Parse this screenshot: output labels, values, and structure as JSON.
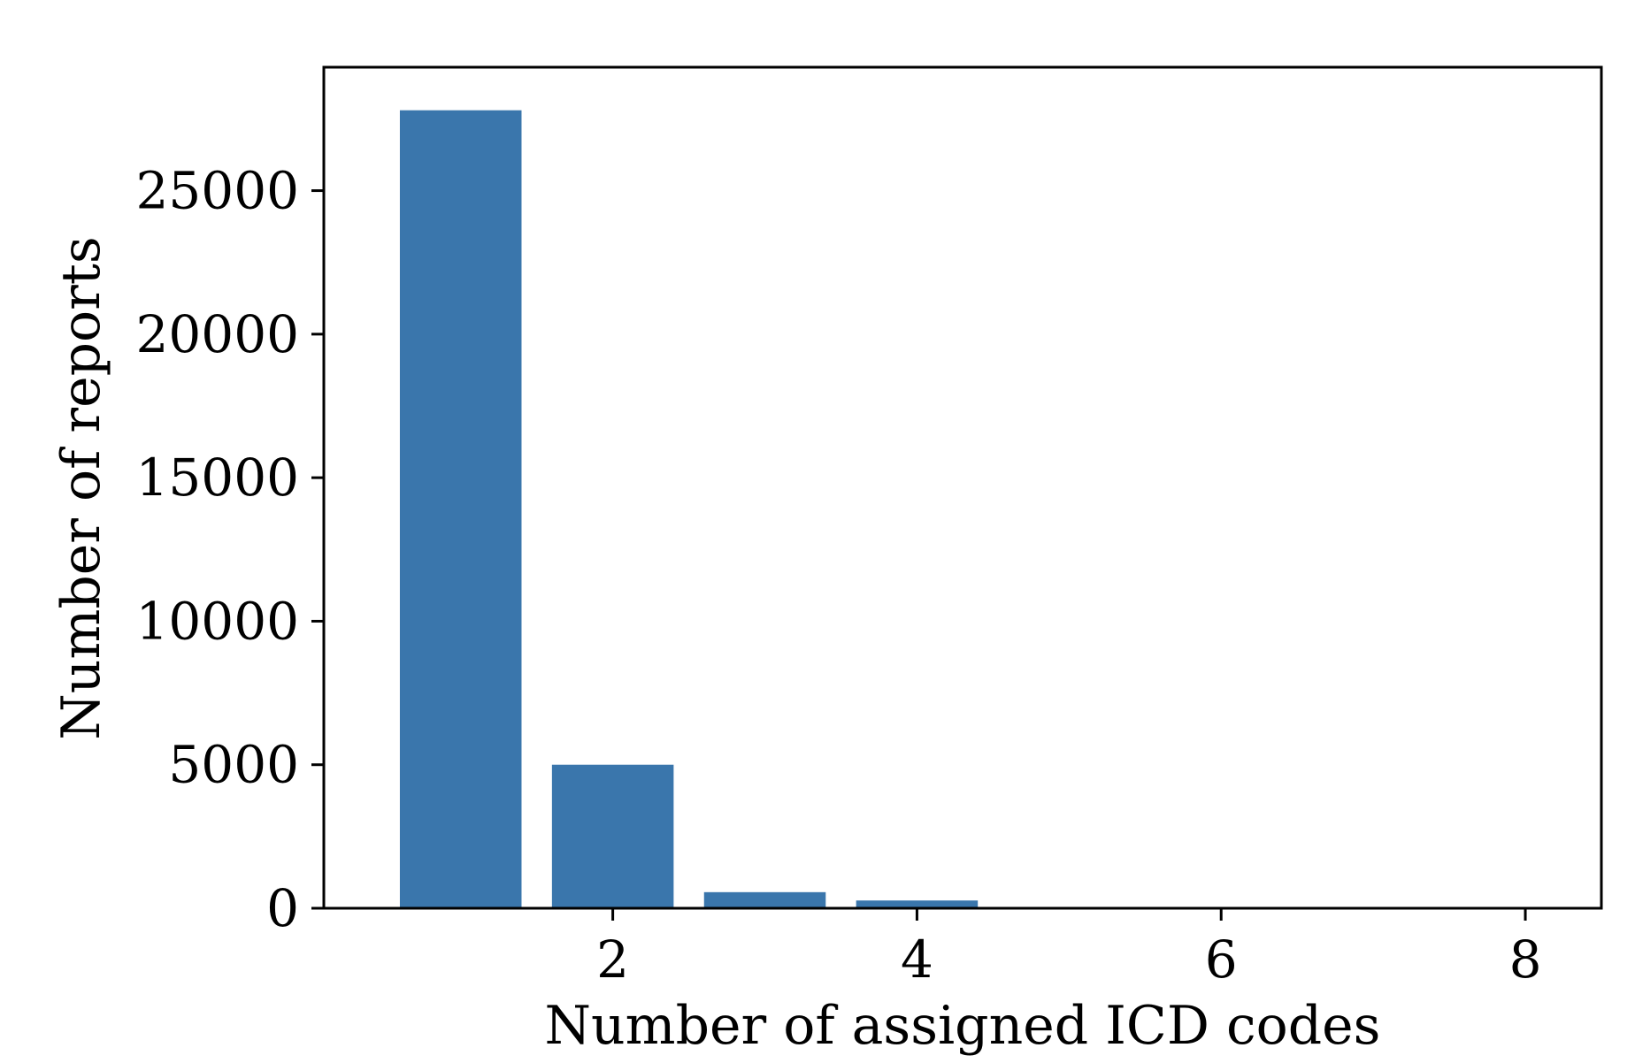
{
  "colors": {
    "bar": "#3a76ac",
    "axis": "#000000",
    "background": "#ffffff"
  },
  "chart_data": {
    "type": "bar",
    "title": "",
    "xlabel": "Number of assigned ICD codes",
    "ylabel": "Number of reports",
    "x": [
      1,
      2,
      3,
      4,
      5,
      6,
      7,
      8
    ],
    "values": [
      27800,
      5000,
      560,
      270,
      10,
      3,
      1,
      1
    ],
    "bar_width": 0.8,
    "xlim": [
      0.1,
      8.5
    ],
    "ylim": [
      0,
      29300
    ],
    "xticks": [
      2,
      4,
      6,
      8
    ],
    "xtick_labels": [
      "2",
      "4",
      "6",
      "8"
    ],
    "yticks": [
      0,
      5000,
      10000,
      15000,
      20000,
      25000
    ],
    "ytick_labels": [
      "0",
      "5000",
      "10000",
      "15000",
      "20000",
      "25000"
    ],
    "grid": false,
    "legend": "none"
  }
}
